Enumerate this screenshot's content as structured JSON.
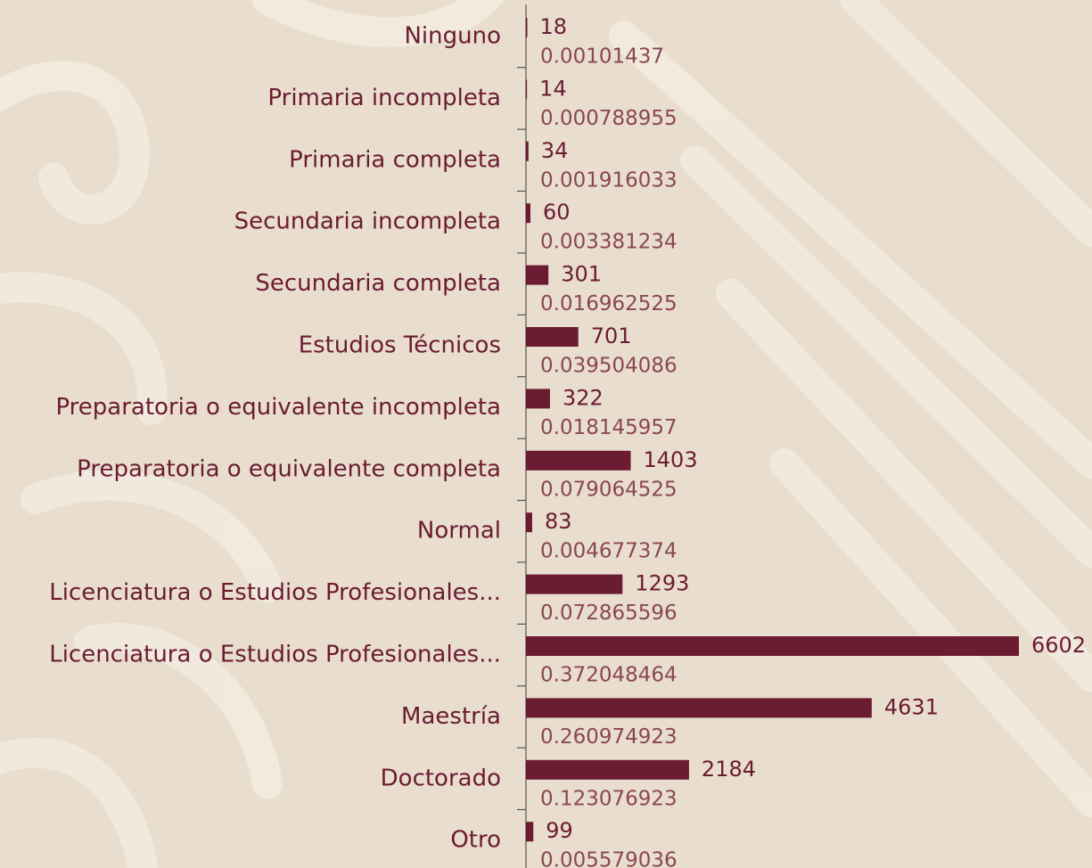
{
  "chart_data": {
    "type": "barh",
    "categories": [
      "Ninguno",
      "Primaria incompleta",
      "Primaria completa",
      "Secundaria incompleta",
      "Secundaria completa",
      "Estudios Técnicos",
      "Preparatoria o equivalente incompleta",
      "Preparatoria o equivalente completa",
      "Normal",
      "Licenciatura o Estudios Profesionales...",
      "Licenciatura o Estudios Profesionales...",
      "Maestría",
      "Doctorado",
      "Otro"
    ],
    "values": [
      18,
      14,
      34,
      60,
      301,
      701,
      322,
      1403,
      83,
      1293,
      6602,
      4631,
      2184,
      99
    ],
    "shares": [
      "0.00101437",
      "0.000788955",
      "0.001916033",
      "0.003381234",
      "0.016962525",
      "0.039504086",
      "0.018145957",
      "0.079064525",
      "0.004677374",
      "0.072865596",
      "0.372048464",
      "0.260974923",
      "0.123076923",
      "0.005579036"
    ],
    "color": "#6b1b32"
  }
}
